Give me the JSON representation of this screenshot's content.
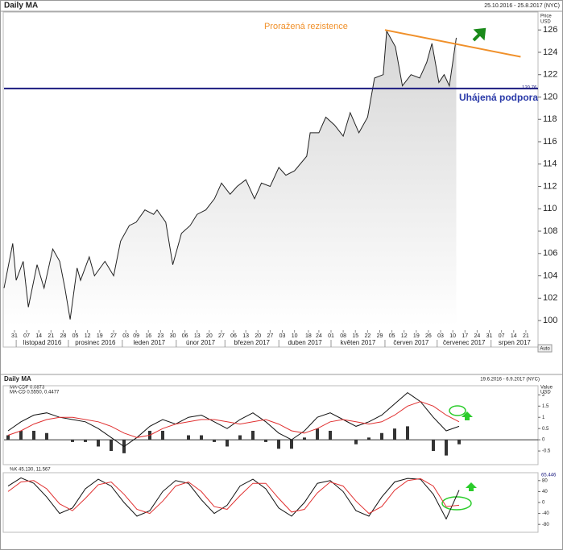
{
  "chart_data": [
    {
      "type": "line",
      "title": "Daily MA",
      "subtitle": "25.10.2016 - 25.8.2017 (NYC)",
      "y_label": "Price",
      "y_unit": "USD",
      "button": "Auto",
      "color": "#222222",
      "x": [
        "2016-10-25",
        "2016-10-30",
        "2016-11-01",
        "2016-11-05",
        "2016-11-08",
        "2016-11-13",
        "2016-11-17",
        "2016-11-22",
        "2016-11-26",
        "2016-11-29",
        "2016-12-02",
        "2016-12-06",
        "2016-12-08",
        "2016-12-13",
        "2016-12-16",
        "2016-12-22",
        "2016-12-27",
        "2016-12-31",
        "2017-01-05",
        "2017-01-09",
        "2017-01-14",
        "2017-01-19",
        "2017-01-21",
        "2017-01-26",
        "2017-01-30",
        "2017-02-04",
        "2017-02-09",
        "2017-02-13",
        "2017-02-18",
        "2017-02-23",
        "2017-02-27",
        "2017-03-04",
        "2017-03-08",
        "2017-03-13",
        "2017-03-18",
        "2017-03-22",
        "2017-03-27",
        "2017-04-01",
        "2017-04-05",
        "2017-04-10",
        "2017-04-17",
        "2017-04-19",
        "2017-04-24",
        "2017-04-28",
        "2017-05-03",
        "2017-05-08",
        "2017-05-12",
        "2017-05-17",
        "2017-05-22",
        "2017-05-26",
        "2017-05-31",
        "2017-06-02",
        "2017-06-07",
        "2017-06-11",
        "2017-06-16",
        "2017-06-21",
        "2017-06-25",
        "2017-06-28",
        "2017-07-02",
        "2017-07-05",
        "2017-07-08",
        "2017-07-12"
      ],
      "series": [
        {
          "values": [
            102.9,
            106.9,
            103.6,
            105.3,
            101.2,
            105,
            102.9,
            106.4,
            105.3,
            102.9,
            100.1,
            104.7,
            103.6,
            105.7,
            104,
            105.3,
            104,
            107.1,
            108.5,
            108.8,
            109.9,
            109.5,
            109.9,
            108.8,
            105,
            107.8,
            108.5,
            109.5,
            109.9,
            110.9,
            112.3,
            111.3,
            112,
            112.6,
            110.9,
            112.3,
            112,
            113.7,
            113,
            113.4,
            114.7,
            116.8,
            116.8,
            118.2,
            117.5,
            116.5,
            118.6,
            116.8,
            118.2,
            121.7,
            122,
            125.9,
            124.5,
            121,
            122,
            121.7,
            123.1,
            124.8,
            121.3,
            122,
            121,
            125.3
          ]
        }
      ],
      "xlim": [
        "2016-10-25",
        "2017-08-28"
      ],
      "xticks": [
        {
          "value": "2016-10-31",
          "label": "31"
        },
        {
          "value": "2016-11-07",
          "label": "07"
        },
        {
          "value": "2016-11-14",
          "label": "14"
        },
        {
          "value": "2016-11-21",
          "label": "21"
        },
        {
          "value": "2016-11-28",
          "label": "28"
        },
        {
          "value": "2016-12-05",
          "label": "05"
        },
        {
          "value": "2016-12-12",
          "label": "12"
        },
        {
          "value": "2016-12-19",
          "label": "19"
        },
        {
          "value": "2016-12-27",
          "label": "27"
        },
        {
          "value": "2017-01-03",
          "label": "03"
        },
        {
          "value": "2017-01-09",
          "label": "09"
        },
        {
          "value": "2017-01-16",
          "label": "16"
        },
        {
          "value": "2017-01-23",
          "label": "23"
        },
        {
          "value": "2017-01-30",
          "label": "30"
        },
        {
          "value": "2017-02-06",
          "label": "06"
        },
        {
          "value": "2017-02-13",
          "label": "13"
        },
        {
          "value": "2017-02-20",
          "label": "20"
        },
        {
          "value": "2017-02-27",
          "label": "27"
        },
        {
          "value": "2017-03-06",
          "label": "06"
        },
        {
          "value": "2017-03-13",
          "label": "13"
        },
        {
          "value": "2017-03-20",
          "label": "20"
        },
        {
          "value": "2017-03-27",
          "label": "27"
        },
        {
          "value": "2017-04-03",
          "label": "03"
        },
        {
          "value": "2017-04-10",
          "label": "10"
        },
        {
          "value": "2017-04-18",
          "label": "18"
        },
        {
          "value": "2017-04-24",
          "label": "24"
        },
        {
          "value": "2017-05-01",
          "label": "01"
        },
        {
          "value": "2017-05-08",
          "label": "08"
        },
        {
          "value": "2017-05-15",
          "label": "15"
        },
        {
          "value": "2017-05-22",
          "label": "22"
        },
        {
          "value": "2017-05-29",
          "label": "29"
        },
        {
          "value": "2017-06-05",
          "label": "05"
        },
        {
          "value": "2017-06-12",
          "label": "12"
        },
        {
          "value": "2017-06-19",
          "label": "19"
        },
        {
          "value": "2017-06-26",
          "label": "26"
        },
        {
          "value": "2017-07-03",
          "label": "03"
        },
        {
          "value": "2017-07-10",
          "label": "10"
        },
        {
          "value": "2017-07-17",
          "label": "17"
        },
        {
          "value": "2017-07-24",
          "label": "24"
        },
        {
          "value": "2017-07-31",
          "label": "31"
        },
        {
          "value": "2017-08-07",
          "label": "07"
        },
        {
          "value": "2017-08-14",
          "label": "14"
        },
        {
          "value": "2017-08-21",
          "label": "21"
        }
      ],
      "months": [
        {
          "value": "2016-11-01",
          "label": "listopad 2016"
        },
        {
          "value": "2016-12-01",
          "label": "prosinec 2016"
        },
        {
          "value": "2017-01-01",
          "label": "leden 2017"
        },
        {
          "value": "2017-02-01",
          "label": "únor 2017"
        },
        {
          "value": "2017-03-01",
          "label": "březen 2017"
        },
        {
          "value": "2017-04-01",
          "label": "duben 2017"
        },
        {
          "value": "2017-05-01",
          "label": "květen 2017"
        },
        {
          "value": "2017-06-01",
          "label": "červen 2017"
        },
        {
          "value": "2017-07-01",
          "label": "červenec 2017"
        },
        {
          "value": "2017-08-01",
          "label": "srpen 2017"
        }
      ],
      "ylim": [
        99.5,
        127.6
      ],
      "yticks": [
        100,
        102,
        104,
        106,
        108,
        110,
        112,
        114,
        116,
        118,
        120,
        122,
        124,
        126
      ],
      "resistance": {
        "label": "Proražená rezistence",
        "x": [
          "2017-06-01",
          "2017-08-18"
        ],
        "values": [
          126,
          123.6
        ],
        "color": "#f0902a"
      },
      "support": {
        "label": "Uhájená podpora",
        "value": 120.76,
        "value_label": "120,76",
        "color": "#1c1c80"
      }
    },
    {
      "type": "macd",
      "title": "Daily MA",
      "subtitle": "19.6.2016 - 6.9.2017 (NYC)",
      "y_label": "Value",
      "y_unit": "USD",
      "legend": [
        "MA-CDF 0.0873",
        "MA-CD 0.5550, 0.4477"
      ],
      "series": [
        {
          "style": "bar",
          "color": "#333333",
          "values": [
            0.2,
            0.4,
            0.4,
            0.3,
            0,
            -0.1,
            -0.1,
            -0.3,
            -0.5,
            -0.6,
            0,
            0.4,
            0.4,
            0,
            0.2,
            0.2,
            -0.1,
            -0.3,
            0.2,
            0.4,
            -0.1,
            -0.4,
            -0.4,
            0.1,
            0.5,
            0.4,
            0,
            -0.2,
            0.1,
            0.3,
            0.5,
            0.6,
            0,
            -0.5,
            -0.7,
            -0.2
          ]
        },
        {
          "style": "line",
          "color": "#111111",
          "values": [
            0.4,
            0.8,
            1.1,
            1.2,
            1.0,
            0.9,
            0.8,
            0.5,
            0.1,
            -0.3,
            0.1,
            0.6,
            0.9,
            0.7,
            1.0,
            1.1,
            0.8,
            0.5,
            0.9,
            1.2,
            0.8,
            0.3,
            0.0,
            0.4,
            1.0,
            1.2,
            0.9,
            0.6,
            0.8,
            1.1,
            1.6,
            2.1,
            1.7,
            1.0,
            0.4,
            0.6
          ]
        },
        {
          "style": "line",
          "color": "#e03030",
          "values": [
            0.2,
            0.4,
            0.7,
            0.9,
            1.0,
            1.0,
            0.9,
            0.8,
            0.6,
            0.3,
            0.1,
            0.2,
            0.5,
            0.7,
            0.8,
            0.9,
            0.9,
            0.8,
            0.7,
            0.8,
            0.9,
            0.7,
            0.4,
            0.3,
            0.5,
            0.8,
            0.9,
            0.8,
            0.7,
            0.8,
            1.1,
            1.5,
            1.7,
            1.5,
            1.1,
            0.8
          ]
        }
      ],
      "ylim": [
        -1,
        2.3
      ],
      "yticks": [
        -0.5,
        0,
        0.5,
        1,
        1.5,
        2
      ]
    },
    {
      "type": "stochastic",
      "legend": [
        "%K 45.130, 11.567"
      ],
      "value_label": "65.446",
      "series": [
        {
          "style": "line",
          "color": "#111111",
          "values": [
            60,
            90,
            70,
            20,
            -40,
            -20,
            50,
            85,
            60,
            0,
            -50,
            -30,
            40,
            80,
            70,
            10,
            -40,
            -10,
            60,
            85,
            50,
            -20,
            -50,
            0,
            70,
            80,
            40,
            -30,
            -50,
            20,
            75,
            88,
            85,
            30,
            -60,
            45
          ]
        },
        {
          "style": "line",
          "color": "#e03030",
          "values": [
            40,
            75,
            80,
            50,
            -5,
            -30,
            15,
            65,
            75,
            30,
            -25,
            -40,
            5,
            60,
            75,
            40,
            -15,
            -25,
            25,
            70,
            70,
            15,
            -35,
            -25,
            35,
            75,
            60,
            5,
            -40,
            -15,
            45,
            80,
            87,
            60,
            -15,
            -10
          ]
        }
      ],
      "ylim": [
        -100,
        100
      ],
      "yticks": [
        -80,
        -40,
        0,
        40,
        80
      ]
    }
  ]
}
